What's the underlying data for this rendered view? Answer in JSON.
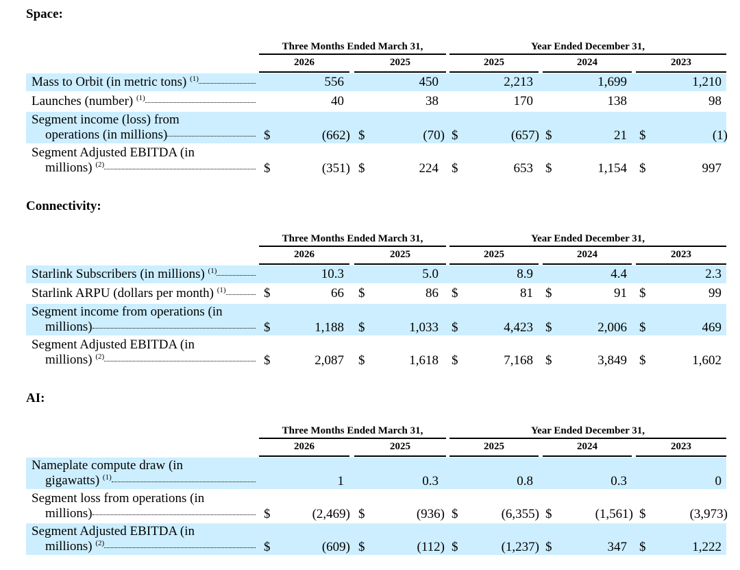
{
  "currency_symbol": "$",
  "sections": [
    {
      "id": "space",
      "title": "Space:",
      "group_headers": [
        "Three Months Ended March 31,",
        "Year Ended December 31,"
      ],
      "columns": [
        "2026",
        "2025",
        "2025",
        "2024",
        "2023"
      ],
      "rows": [
        {
          "label": [
            "Mass to Orbit (in metric tons)"
          ],
          "note": "(1)",
          "currency": false,
          "values": [
            "556",
            "450",
            "2,213",
            "1,699",
            "1,210"
          ]
        },
        {
          "label": [
            "Launches (number)"
          ],
          "note": "(1)",
          "currency": false,
          "values": [
            "40",
            "38",
            "170",
            "138",
            "98"
          ]
        },
        {
          "label": [
            "Segment income (loss) from",
            "operations (in millions)"
          ],
          "note": "",
          "currency": true,
          "values": [
            "(662)",
            "(70)",
            "(657)",
            "21",
            "(1)"
          ]
        },
        {
          "label": [
            "Segment Adjusted EBITDA (in",
            "millions)"
          ],
          "note": "(2)",
          "currency": true,
          "values": [
            "(351)",
            "224",
            "653",
            "1,154",
            "997"
          ]
        }
      ]
    },
    {
      "id": "connectivity",
      "title": "Connectivity:",
      "group_headers": [
        "Three Months Ended March 31,",
        "Year Ended December 31,"
      ],
      "columns": [
        "2026",
        "2025",
        "2025",
        "2024",
        "2023"
      ],
      "rows": [
        {
          "label": [
            "Starlink Subscribers (in millions)"
          ],
          "note": "(1)",
          "currency": false,
          "values": [
            "10.3",
            "5.0",
            "8.9",
            "4.4",
            "2.3"
          ]
        },
        {
          "label": [
            "Starlink ARPU (dollars per month)"
          ],
          "note": "(1)",
          "currency": true,
          "values": [
            "66",
            "86",
            "81",
            "91",
            "99"
          ]
        },
        {
          "label": [
            "Segment income from operations (in",
            "millions)"
          ],
          "note": "",
          "currency": true,
          "values": [
            "1,188",
            "1,033",
            "4,423",
            "2,006",
            "469"
          ]
        },
        {
          "label": [
            "Segment Adjusted EBITDA (in",
            "millions)"
          ],
          "note": "(2)",
          "currency": true,
          "values": [
            "2,087",
            "1,618",
            "7,168",
            "3,849",
            "1,602"
          ]
        }
      ]
    },
    {
      "id": "ai",
      "title": "AI:",
      "group_headers": [
        "Three Months Ended March 31,",
        "Year Ended December 31,"
      ],
      "columns": [
        "2026",
        "2025",
        "2025",
        "2024",
        "2023"
      ],
      "rows": [
        {
          "label": [
            "Nameplate compute draw (in",
            "gigawatts)"
          ],
          "note": "(1)",
          "currency": false,
          "values": [
            "1",
            "0.3",
            "0.8",
            "0.3",
            "0"
          ]
        },
        {
          "label": [
            "Segment loss from operations (in",
            "millions)"
          ],
          "note": "",
          "currency": true,
          "values": [
            "(2,469)",
            "(936)",
            "(6,355)",
            "(1,561)",
            "(3,973)"
          ]
        },
        {
          "label": [
            "Segment Adjusted EBITDA (in",
            "millions)"
          ],
          "note": "(2)",
          "currency": true,
          "values": [
            "(609)",
            "(112)",
            "(1,237)",
            "347",
            "1,222"
          ]
        }
      ]
    }
  ]
}
